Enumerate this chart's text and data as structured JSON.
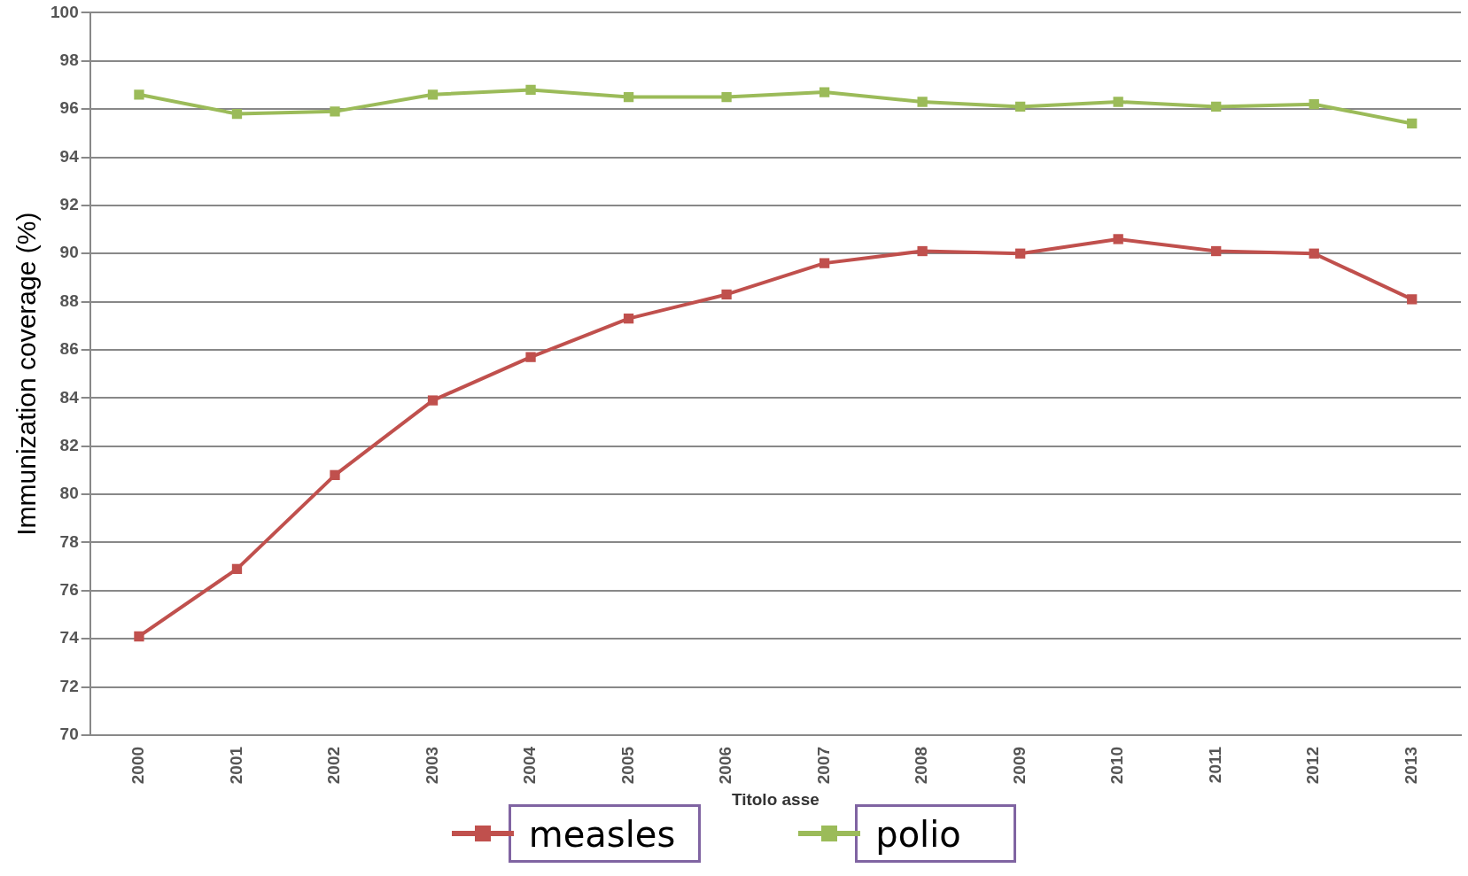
{
  "chart_data": {
    "type": "line",
    "ylabel": "Immunization coverage (%)",
    "xlabel": "Titolo asse",
    "categories": [
      "2000",
      "2001",
      "2002",
      "2003",
      "2004",
      "2005",
      "2006",
      "2007",
      "2008",
      "2009",
      "2010",
      "2011",
      "2012",
      "2013"
    ],
    "series": [
      {
        "name": "measles",
        "color": "#c0504d",
        "values": [
          74.1,
          76.9,
          80.8,
          83.9,
          85.7,
          87.3,
          88.3,
          89.6,
          90.1,
          90.0,
          90.6,
          90.1,
          90.0,
          88.1
        ]
      },
      {
        "name": "polio",
        "color": "#9bbb59",
        "values": [
          96.6,
          95.8,
          95.9,
          96.6,
          96.8,
          96.5,
          96.5,
          96.7,
          96.3,
          96.1,
          96.3,
          96.1,
          96.2,
          95.4
        ]
      }
    ],
    "ylim": [
      70,
      100
    ],
    "yticks": [
      70,
      72,
      74,
      76,
      78,
      80,
      82,
      84,
      86,
      88,
      90,
      92,
      94,
      96,
      98,
      100
    ],
    "grid": "y",
    "legend": "bottom",
    "marker": "square",
    "line_style": "solid"
  }
}
